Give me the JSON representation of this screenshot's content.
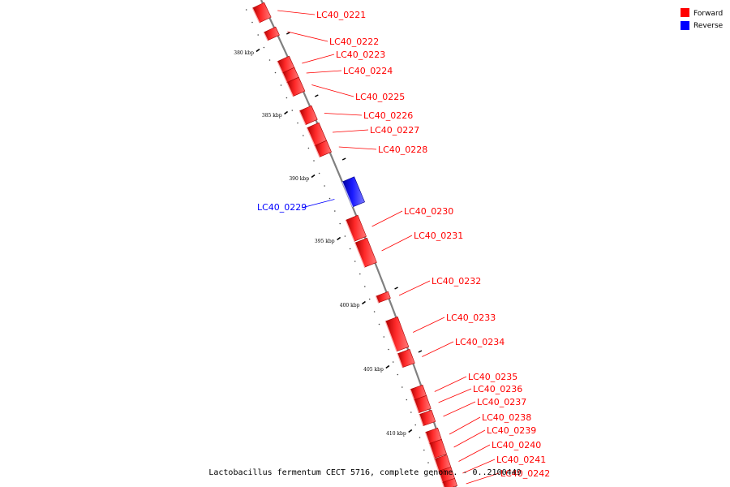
{
  "legend": {
    "items": [
      {
        "label": "Forward",
        "color": "#ff0000"
      },
      {
        "label": "Reverse",
        "color": "#0000ff"
      }
    ]
  },
  "ticks": [
    "380 kbp",
    "385 kbp",
    "390 kbp",
    "395 kbp",
    "400 kbp",
    "405 kbp",
    "410 kbp"
  ],
  "genes": [
    {
      "name": "LC40_0221",
      "strand": "forward"
    },
    {
      "name": "LC40_0222",
      "strand": "forward"
    },
    {
      "name": "LC40_0223",
      "strand": "forward"
    },
    {
      "name": "LC40_0224",
      "strand": "forward"
    },
    {
      "name": "LC40_0225",
      "strand": "forward"
    },
    {
      "name": "LC40_0226",
      "strand": "forward"
    },
    {
      "name": "LC40_0227",
      "strand": "forward"
    },
    {
      "name": "LC40_0228",
      "strand": "forward"
    },
    {
      "name": "LC40_0229",
      "strand": "reverse"
    },
    {
      "name": "LC40_0230",
      "strand": "forward"
    },
    {
      "name": "LC40_0231",
      "strand": "forward"
    },
    {
      "name": "LC40_0232",
      "strand": "forward"
    },
    {
      "name": "LC40_0233",
      "strand": "forward"
    },
    {
      "name": "LC40_0234",
      "strand": "forward"
    },
    {
      "name": "LC40_0235",
      "strand": "forward"
    },
    {
      "name": "LC40_0236",
      "strand": "forward"
    },
    {
      "name": "LC40_0237",
      "strand": "forward"
    },
    {
      "name": "LC40_0238",
      "strand": "forward"
    },
    {
      "name": "LC40_0239",
      "strand": "forward"
    },
    {
      "name": "LC40_0240",
      "strand": "forward"
    },
    {
      "name": "LC40_0241",
      "strand": "forward"
    },
    {
      "name": "LC40_0242",
      "strand": "forward"
    }
  ],
  "caption": "Lactobacillus fermentum CECT 5716, complete genome. - 0..2100449",
  "colors": {
    "forward": "#ff0000",
    "reverse": "#0000ff",
    "backbone": "#808080"
  }
}
